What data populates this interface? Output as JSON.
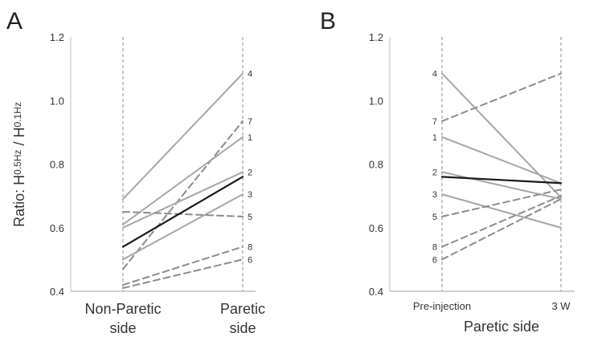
{
  "ylabel": {
    "main": "Ratio: H",
    "sub1": "0.5Hz",
    "sep": " / H",
    "sub2": "0.1Hz"
  },
  "colors": {
    "gray": "#a6a6a6",
    "dashed": "#8c8c8c",
    "mean": "#1a1a1a",
    "guide": "#8c8c8c",
    "axis": "#bfbfbf"
  },
  "chart_data": [
    {
      "type": "line",
      "panel": "A",
      "categories": [
        "Non-Paretic side",
        "Paretic side"
      ],
      "category_lines": [
        [
          "Non-Paretic",
          "side"
        ],
        [
          "Paretic",
          "side"
        ]
      ],
      "xlabel": "",
      "ylim": [
        0.4,
        1.2
      ],
      "yticks": [
        "0.4",
        "0.6",
        "0.8",
        "1.0",
        "1.2"
      ],
      "label_side": "right",
      "series": [
        {
          "label": "4",
          "values": [
            0.69,
            1.085
          ],
          "style": "solid"
        },
        {
          "label": "7",
          "values": [
            0.47,
            0.935
          ],
          "style": "dashed"
        },
        {
          "label": "1",
          "values": [
            0.61,
            0.885
          ],
          "style": "solid"
        },
        {
          "label": "2",
          "values": [
            0.6,
            0.775
          ],
          "style": "solid"
        },
        {
          "label": "3",
          "values": [
            0.5,
            0.705
          ],
          "style": "solid"
        },
        {
          "label": "5",
          "values": [
            0.65,
            0.635
          ],
          "style": "dashed"
        },
        {
          "label": "8",
          "values": [
            0.42,
            0.54
          ],
          "style": "dashed"
        },
        {
          "label": "6",
          "values": [
            0.41,
            0.5
          ],
          "style": "dashed"
        },
        {
          "label": "",
          "values": [
            0.54,
            0.76
          ],
          "style": "mean"
        }
      ]
    },
    {
      "type": "line",
      "panel": "B",
      "categories": [
        "Pre-injection",
        "3 W"
      ],
      "category_lines": [
        [
          "Pre-injection"
        ],
        [
          "3 W"
        ]
      ],
      "xlabel": "Paretic side",
      "ylim": [
        0.4,
        1.2
      ],
      "yticks": [
        "0.4",
        "0.6",
        "0.8",
        "1.0",
        "1.2"
      ],
      "label_side": "left",
      "series": [
        {
          "label": "4",
          "values": [
            1.085,
            0.695
          ],
          "style": "solid"
        },
        {
          "label": "7",
          "values": [
            0.935,
            1.085
          ],
          "style": "dashed"
        },
        {
          "label": "1",
          "values": [
            0.885,
            0.74
          ],
          "style": "solid"
        },
        {
          "label": "2",
          "values": [
            0.775,
            0.69
          ],
          "style": "solid"
        },
        {
          "label": "3",
          "values": [
            0.705,
            0.6
          ],
          "style": "solid"
        },
        {
          "label": "5",
          "values": [
            0.635,
            0.72
          ],
          "style": "dashed"
        },
        {
          "label": "8",
          "values": [
            0.54,
            0.7
          ],
          "style": "dashed"
        },
        {
          "label": "6",
          "values": [
            0.5,
            0.69
          ],
          "style": "dashed"
        },
        {
          "label": "",
          "values": [
            0.76,
            0.74
          ],
          "style": "mean"
        }
      ]
    }
  ]
}
